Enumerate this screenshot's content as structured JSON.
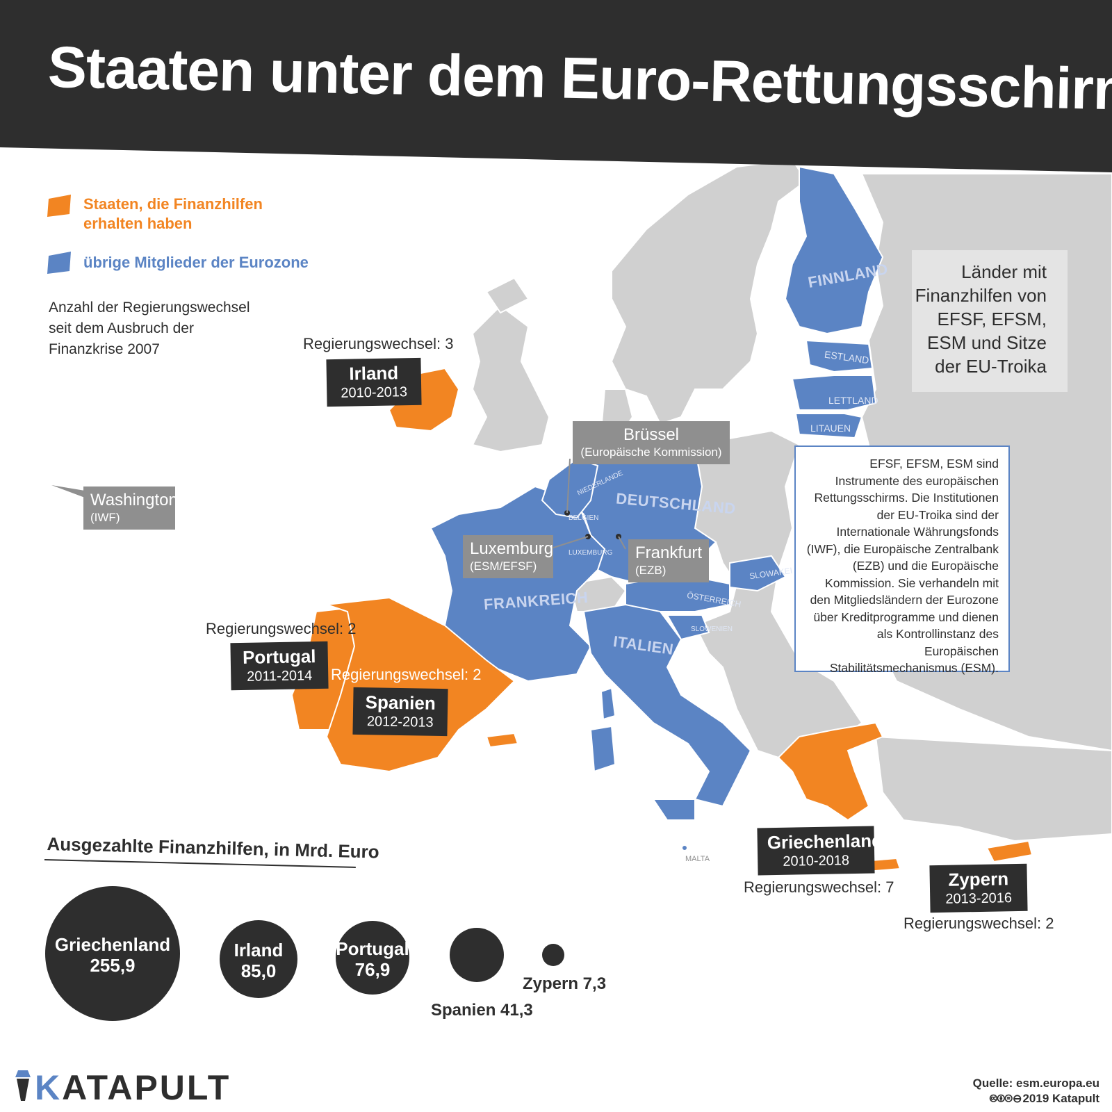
{
  "title": "Staaten unter dem Euro-Rettungsschirm",
  "colors": {
    "recipient": "#f28522",
    "eurozone": "#5b84c4",
    "other": "#d0d0d0",
    "dark": "#2e2e2e",
    "grey_label": "#8f8f8f"
  },
  "legend": {
    "recipients": "Staaten, die Finanzhilfen erhalten haben",
    "eurozone": "übrige Mitglieder der Eurozone"
  },
  "note": "Anzahl der Regierungswechsel seit dem Ausbruch der Finanzkrise 2007",
  "countries": {
    "irland": {
      "name": "Irland",
      "years": "2010-2013",
      "gov": "Regierungswechsel: 3"
    },
    "portugal": {
      "name": "Portugal",
      "years": "2011-2014",
      "gov": "Regierungswechsel: 2"
    },
    "spanien": {
      "name": "Spanien",
      "years": "2012-2013",
      "gov": "Regierungswechsel: 2"
    },
    "griechenland": {
      "name": "Griechenland",
      "years": "2010-2018",
      "gov": "Regierungswechsel: 7"
    },
    "zypern": {
      "name": "Zypern",
      "years": "2013-2016",
      "gov": "Regierungswechsel: 2"
    }
  },
  "map_labels": {
    "finnland": "FINNLAND",
    "estland": "ESTLAND",
    "lettland": "LETTLAND",
    "litauen": "LITAUEN",
    "deutschland": "DEUTSCHLAND",
    "frankreich": "FRANKREICH",
    "italien": "ITALIEN",
    "slowakei": "SLOWAKEI",
    "oesterreich": "ÖSTERREICH",
    "slowenien": "SLOWENIEN",
    "niederlande": "NIEDERLANDE",
    "belgien": "BELGIEN",
    "luxemburg": "LUXEMBURG",
    "malta": "MALTA"
  },
  "institutions": {
    "bruessel": {
      "name": "Brüssel",
      "sub": "(Europäische Kommission)"
    },
    "luxemburg": {
      "name": "Luxemburg",
      "sub": "(ESM/EFSF)"
    },
    "frankfurt": {
      "name": "Frankfurt",
      "sub": "(EZB)"
    },
    "washington": {
      "name": "Washington",
      "sub": "(IWF)"
    }
  },
  "side_box": "Länder mit Finanzhilfen von EFSF, EFSM, ESM und Sitze der EU-Troika",
  "info_box": "EFSF, EFSM, ESM sind Instrumente des europäischen Rettungsschirms. Die Institutionen der EU-Troika sind der Internationale Währungsfonds (IWF), die Europäische Zentralbank (EZB) und die Europäische Kommission. Sie verhandeln mit den Mitgliedsländern der Eurozone über Kreditprogramme und dienen als Kontrollinstanz des Europäischen Stabilitätsmechanismus (ESM).",
  "chart_data": {
    "type": "bubble",
    "title": "Ausgezahlte Finanzhilfen, in Mrd. Euro",
    "categories": [
      "Griechenland",
      "Irland",
      "Portugal",
      "Spanien",
      "Zypern"
    ],
    "values": [
      255.9,
      85.0,
      76.9,
      41.3,
      7.3
    ],
    "value_labels": [
      "255,9",
      "85,0",
      "76,9",
      "41,3",
      "7,3"
    ]
  },
  "bubble_labels": {
    "spanien": "Spanien 41,3",
    "zypern": "Zypern 7,3"
  },
  "logo": "KATAPULT",
  "source": {
    "line1": "Quelle: esm.europa.eu",
    "line2": "2019 Katapult"
  }
}
